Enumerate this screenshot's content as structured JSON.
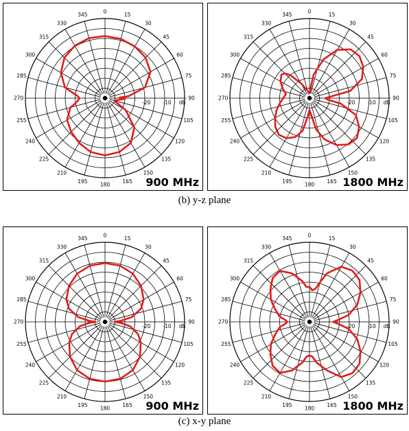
{
  "figure": {
    "caption_b": "(b) y-z plane",
    "caption_c": "(c) x-y plane"
  },
  "colors": {
    "pattern": "#e31b1b",
    "grid": "#000000",
    "frame": "#000000"
  },
  "chart_data": [
    {
      "type": "polar",
      "panel": "yz-900",
      "freq_label": "900 MHz",
      "angle_labels": [
        "0",
        "15",
        "30",
        "45",
        "60",
        "75",
        "90",
        "105",
        "120",
        "135",
        "150",
        "165",
        "180",
        "195",
        "210",
        "225",
        "240",
        "255",
        "270",
        "285",
        "300",
        "315",
        "330",
        "345"
      ],
      "radial_labels": [
        "-20",
        "-10",
        "dB"
      ],
      "angles_deg": [
        0,
        15,
        30,
        45,
        60,
        75,
        85,
        88,
        90,
        92,
        95,
        105,
        120,
        135,
        150,
        165,
        180,
        195,
        210,
        225,
        240,
        255,
        260,
        265,
        270,
        275,
        280,
        285,
        300,
        315,
        330,
        345,
        360
      ],
      "radii": [
        0.78,
        0.77,
        0.75,
        0.72,
        0.66,
        0.52,
        0.3,
        0.18,
        0.24,
        0.25,
        0.2,
        0.12,
        0.3,
        0.52,
        0.65,
        0.7,
        0.72,
        0.7,
        0.65,
        0.6,
        0.55,
        0.45,
        0.38,
        0.34,
        0.32,
        0.35,
        0.42,
        0.52,
        0.64,
        0.72,
        0.76,
        0.78,
        0.78
      ]
    },
    {
      "type": "polar",
      "panel": "yz-1800",
      "freq_label": "1800 MHz",
      "angle_labels": [
        "0",
        "15",
        "30",
        "45",
        "60",
        "75",
        "90",
        "105",
        "120",
        "135",
        "150",
        "165",
        "180",
        "195",
        "210",
        "225",
        "240",
        "255",
        "270",
        "285",
        "300",
        "315",
        "330",
        "345"
      ],
      "radial_labels": [
        "-20",
        "-10",
        "dB"
      ],
      "angles_deg": [
        0,
        10,
        20,
        30,
        40,
        50,
        60,
        70,
        80,
        86,
        90,
        94,
        100,
        110,
        120,
        130,
        140,
        150,
        160,
        168,
        175,
        180,
        185,
        192,
        200,
        210,
        220,
        230,
        240,
        250,
        260,
        270,
        280,
        290,
        300,
        310,
        315,
        320,
        330,
        340,
        350,
        355,
        360
      ],
      "radii": [
        0.06,
        0.3,
        0.52,
        0.7,
        0.8,
        0.82,
        0.78,
        0.7,
        0.52,
        0.26,
        0.2,
        0.22,
        0.4,
        0.62,
        0.72,
        0.78,
        0.76,
        0.68,
        0.55,
        0.4,
        0.2,
        0.15,
        0.22,
        0.42,
        0.52,
        0.58,
        0.6,
        0.56,
        0.5,
        0.44,
        0.38,
        0.33,
        0.3,
        0.36,
        0.42,
        0.46,
        0.44,
        0.38,
        0.22,
        0.12,
        0.08,
        0.06,
        0.06
      ]
    },
    {
      "type": "polar",
      "panel": "xy-900",
      "freq_label": "900 MHz",
      "angle_labels": [
        "0",
        "15",
        "30",
        "45",
        "60",
        "75",
        "90",
        "105",
        "120",
        "135",
        "150",
        "165",
        "180",
        "195",
        "210",
        "225",
        "240",
        "255",
        "270",
        "285",
        "300",
        "315",
        "330",
        "345"
      ],
      "radial_labels": [
        "-20",
        "-10",
        "dB"
      ],
      "angles_deg": [
        0,
        15,
        30,
        45,
        60,
        70,
        80,
        86,
        90,
        94,
        100,
        110,
        120,
        135,
        150,
        165,
        180,
        195,
        210,
        225,
        240,
        250,
        260,
        266,
        270,
        274,
        280,
        290,
        300,
        315,
        330,
        345,
        360
      ],
      "radii": [
        0.74,
        0.73,
        0.7,
        0.64,
        0.56,
        0.48,
        0.34,
        0.2,
        0.12,
        0.2,
        0.32,
        0.44,
        0.52,
        0.62,
        0.7,
        0.74,
        0.75,
        0.74,
        0.7,
        0.62,
        0.52,
        0.44,
        0.32,
        0.2,
        0.12,
        0.2,
        0.34,
        0.48,
        0.56,
        0.64,
        0.7,
        0.73,
        0.74
      ]
    },
    {
      "type": "polar",
      "panel": "xy-1800",
      "freq_label": "1800 MHz",
      "angle_labels": [
        "0",
        "15",
        "30",
        "45",
        "60",
        "75",
        "90",
        "105",
        "120",
        "135",
        "150",
        "165",
        "180",
        "195",
        "210",
        "225",
        "240",
        "255",
        "270",
        "285",
        "300",
        "315",
        "330",
        "345"
      ],
      "radial_labels": [
        "-20",
        "-10",
        "dB"
      ],
      "angles_deg": [
        0,
        5,
        10,
        15,
        20,
        30,
        40,
        50,
        60,
        70,
        80,
        86,
        90,
        94,
        100,
        110,
        120,
        130,
        140,
        150,
        160,
        170,
        175,
        180,
        185,
        190,
        200,
        210,
        220,
        230,
        240,
        250,
        260,
        266,
        270,
        274,
        280,
        290,
        300,
        310,
        320,
        330,
        340,
        350,
        355,
        360
      ],
      "radii": [
        0.44,
        0.4,
        0.42,
        0.52,
        0.65,
        0.8,
        0.84,
        0.82,
        0.74,
        0.64,
        0.5,
        0.36,
        0.3,
        0.36,
        0.5,
        0.64,
        0.74,
        0.82,
        0.84,
        0.8,
        0.65,
        0.52,
        0.44,
        0.42,
        0.44,
        0.52,
        0.65,
        0.74,
        0.72,
        0.64,
        0.56,
        0.46,
        0.38,
        0.3,
        0.28,
        0.3,
        0.38,
        0.46,
        0.56,
        0.64,
        0.72,
        0.74,
        0.65,
        0.52,
        0.44,
        0.44
      ]
    }
  ]
}
